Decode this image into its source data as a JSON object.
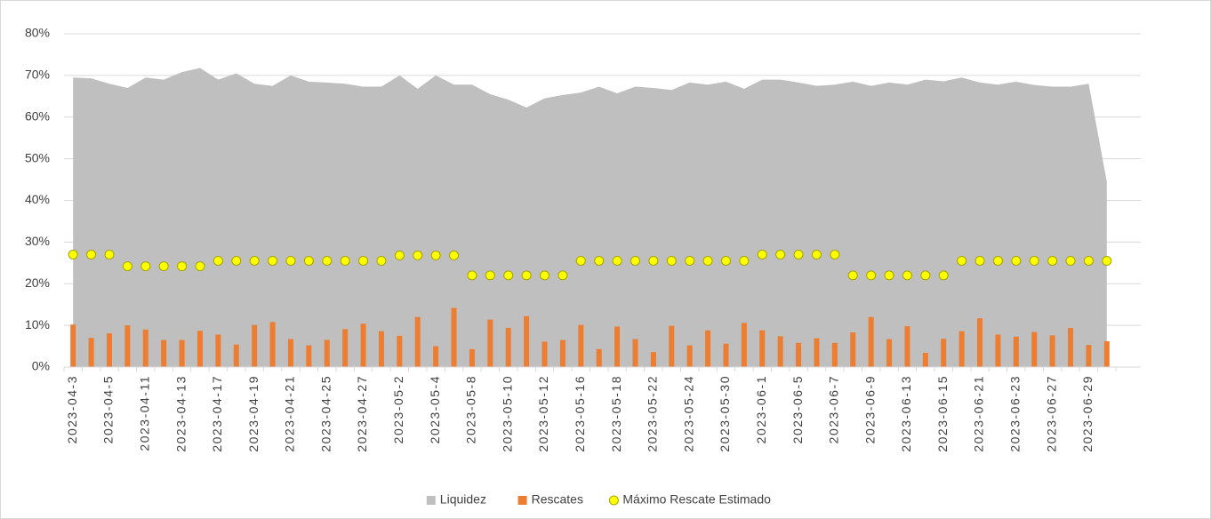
{
  "chart_data": {
    "type": "combo",
    "categories": [
      "2023-04-3",
      null,
      "2023-04-5",
      null,
      "2023-04-11",
      null,
      "2023-04-13",
      null,
      "2023-04-17",
      null,
      "2023-04-19",
      null,
      "2023-04-21",
      null,
      "2023-04-25",
      null,
      "2023-04-27",
      null,
      "2023-05-2",
      null,
      "2023-05-4",
      null,
      "2023-05-8",
      null,
      "2023-05-10",
      null,
      "2023-05-12",
      null,
      "2023-05-16",
      null,
      "2023-05-18",
      null,
      "2023-05-22",
      null,
      "2023-05-24",
      null,
      "2023-05-30",
      null,
      "2023-06-1",
      null,
      "2023-06-5",
      null,
      "2023-06-7",
      null,
      "2023-06-9",
      null,
      "2023-06-13",
      null,
      "2023-06-15",
      null,
      "2023-06-21",
      null,
      "2023-06-23",
      null,
      "2023-06-27",
      null,
      "2023-06-29",
      null
    ],
    "series": [
      {
        "name": "Liquidez",
        "type": "area",
        "color": "#bfbfbf",
        "values": [
          69.5,
          69.3,
          68,
          67,
          69.5,
          69,
          70.8,
          71.8,
          69,
          70.5,
          68,
          67.5,
          70,
          68.5,
          68.3,
          68,
          67.3,
          67.3,
          70,
          66.8,
          70,
          67.8,
          67.8,
          65.5,
          64.2,
          62.3,
          64.5,
          65.3,
          65.9,
          67.3,
          65.7,
          67.3,
          67,
          66.5,
          68.3,
          67.8,
          68.5,
          66.8,
          69,
          69,
          68.3,
          67.5,
          67.8,
          68.5,
          67.5,
          68.3,
          67.8,
          69,
          68.6,
          69.5,
          68.3,
          67.8,
          68.5,
          67.7,
          67.3,
          67.3,
          68,
          44.5
        ]
      },
      {
        "name": "Rescates",
        "type": "bar",
        "color": "#ed7d31",
        "values": [
          10.2,
          7,
          8.1,
          10,
          9,
          6.5,
          6.5,
          8.7,
          7.8,
          5.4,
          10.1,
          10.8,
          6.7,
          5.2,
          6.5,
          9.1,
          10.4,
          8.6,
          7.5,
          12,
          5,
          14.2,
          4.3,
          11.4,
          9.4,
          12.2,
          6.1,
          6.5,
          10.1,
          4.3,
          9.7,
          6.7,
          3.6,
          9.9,
          5.2,
          8.8,
          5.6,
          10.6,
          8.8,
          7.4,
          5.8,
          6.9,
          5.8,
          8.3,
          12,
          6.7,
          9.8,
          3.4,
          6.8,
          8.6,
          11.7,
          7.8,
          7.3,
          8.4,
          7.6,
          9.4,
          5.3,
          6.2
        ]
      },
      {
        "name": "Máximo Rescate Estimado",
        "type": "marker",
        "color": "#ffff00",
        "values": [
          27,
          27,
          27,
          24.2,
          24.2,
          24.2,
          24.2,
          24.2,
          25.5,
          25.5,
          25.5,
          25.5,
          25.5,
          25.5,
          25.5,
          25.5,
          25.5,
          25.5,
          26.8,
          26.8,
          26.8,
          26.8,
          22,
          22,
          22,
          22,
          22,
          22,
          25.5,
          25.5,
          25.5,
          25.5,
          25.5,
          25.5,
          25.5,
          25.5,
          25.5,
          25.5,
          27,
          27,
          27,
          27,
          27,
          22,
          22,
          22,
          22,
          22,
          22,
          25.5,
          25.5,
          25.5,
          25.5,
          25.5,
          25.5,
          25.5,
          25.5,
          25.5
        ]
      }
    ],
    "ylim": [
      0,
      80
    ],
    "yticks": [
      {
        "value": 0,
        "label": "0%"
      },
      {
        "value": 10,
        "label": "10%"
      },
      {
        "value": 20,
        "label": "20%"
      },
      {
        "value": 30,
        "label": "30%"
      },
      {
        "value": 40,
        "label": "40%"
      },
      {
        "value": 50,
        "label": "50%"
      },
      {
        "value": 60,
        "label": "60%"
      },
      {
        "value": 70,
        "label": "70%"
      },
      {
        "value": 80,
        "label": "80%"
      }
    ],
    "grid": true,
    "legend": "bottom"
  }
}
